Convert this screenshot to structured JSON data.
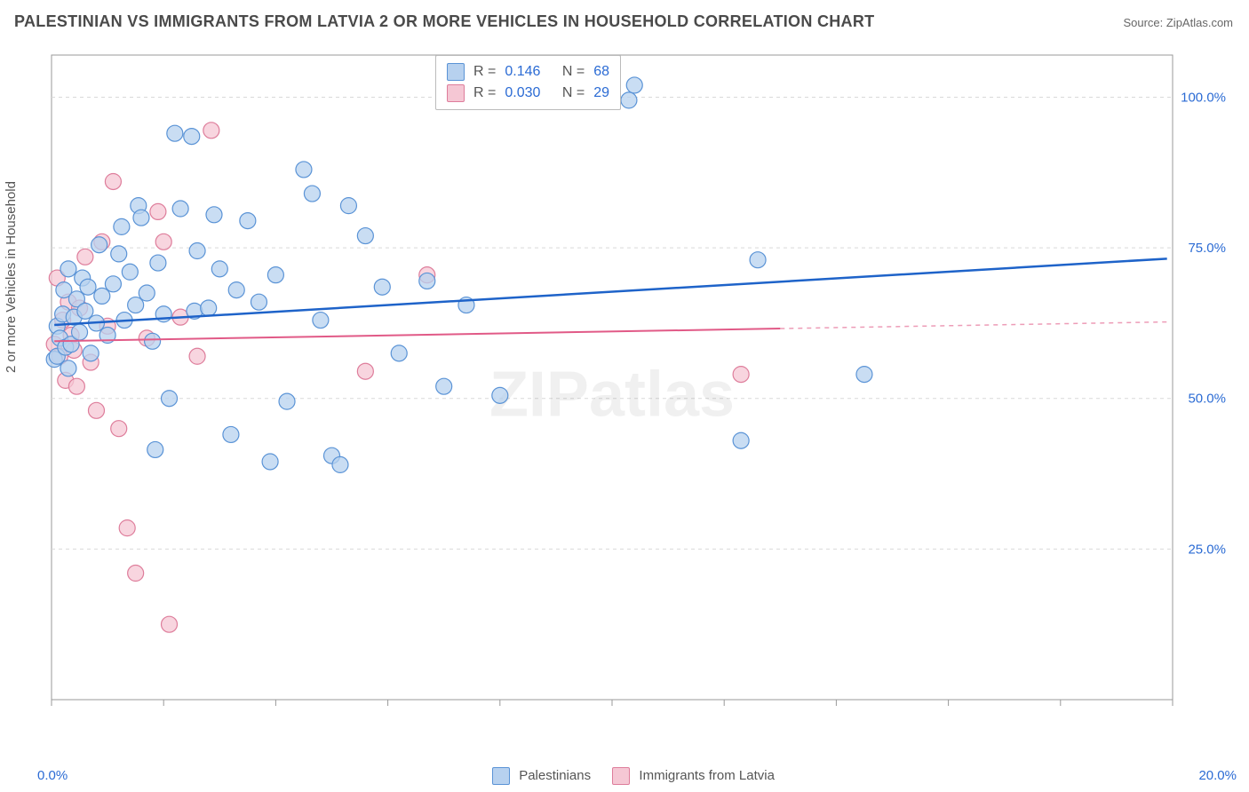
{
  "title": "PALESTINIAN VS IMMIGRANTS FROM LATVIA 2 OR MORE VEHICLES IN HOUSEHOLD CORRELATION CHART",
  "source": "Source: ZipAtlas.com",
  "watermark": "ZIPatlas",
  "ylabel": "2 or more Vehicles in Household",
  "chart": {
    "xlim": [
      0,
      20
    ],
    "ylim": [
      0,
      107
    ],
    "xticks": [
      0,
      2,
      4,
      6,
      8,
      10,
      12,
      14,
      16,
      18,
      20
    ],
    "xtick_labels": {
      "0": "0.0%",
      "20": "20.0%"
    },
    "yticks": [
      25,
      50,
      75,
      100
    ],
    "ytick_labels": {
      "25": "25.0%",
      "50": "50.0%",
      "75": "75.0%",
      "100": "100.0%"
    },
    "grid_color": "#d9d9d9",
    "axis_color": "#999999",
    "background": "#ffffff",
    "series": [
      {
        "name": "Palestinians",
        "fill": "#b7d1ef",
        "stroke": "#5a93d6",
        "line_color": "#1e63c9",
        "r_value": "0.146",
        "n_value": "68",
        "trend": {
          "x1": 0.05,
          "y1": 62.2,
          "x2": 19.9,
          "y2": 73.2
        },
        "points": [
          [
            0.05,
            56.5
          ],
          [
            0.1,
            57.0
          ],
          [
            0.1,
            62.0
          ],
          [
            0.15,
            60.0
          ],
          [
            0.2,
            64.0
          ],
          [
            0.22,
            68.0
          ],
          [
            0.25,
            58.5
          ],
          [
            0.3,
            71.5
          ],
          [
            0.3,
            55.0
          ],
          [
            0.35,
            59.0
          ],
          [
            0.4,
            63.5
          ],
          [
            0.45,
            66.5
          ],
          [
            0.5,
            61.0
          ],
          [
            0.55,
            70.0
          ],
          [
            0.6,
            64.5
          ],
          [
            0.65,
            68.5
          ],
          [
            0.7,
            57.5
          ],
          [
            0.8,
            62.5
          ],
          [
            0.85,
            75.5
          ],
          [
            0.9,
            67.0
          ],
          [
            1.0,
            60.5
          ],
          [
            1.1,
            69.0
          ],
          [
            1.2,
            74.0
          ],
          [
            1.25,
            78.5
          ],
          [
            1.3,
            63.0
          ],
          [
            1.4,
            71.0
          ],
          [
            1.5,
            65.5
          ],
          [
            1.55,
            82.0
          ],
          [
            1.6,
            80.0
          ],
          [
            1.7,
            67.5
          ],
          [
            1.8,
            59.5
          ],
          [
            1.85,
            41.5
          ],
          [
            1.9,
            72.5
          ],
          [
            2.0,
            64.0
          ],
          [
            2.1,
            50.0
          ],
          [
            2.2,
            94.0
          ],
          [
            2.3,
            81.5
          ],
          [
            2.5,
            93.5
          ],
          [
            2.55,
            64.5
          ],
          [
            2.6,
            74.5
          ],
          [
            2.8,
            65.0
          ],
          [
            2.9,
            80.5
          ],
          [
            3.0,
            71.5
          ],
          [
            3.2,
            44.0
          ],
          [
            3.3,
            68.0
          ],
          [
            3.5,
            79.5
          ],
          [
            3.7,
            66.0
          ],
          [
            3.9,
            39.5
          ],
          [
            4.0,
            70.5
          ],
          [
            4.2,
            49.5
          ],
          [
            4.5,
            88.0
          ],
          [
            4.65,
            84.0
          ],
          [
            4.8,
            63.0
          ],
          [
            5.0,
            40.5
          ],
          [
            5.15,
            39.0
          ],
          [
            5.3,
            82.0
          ],
          [
            5.6,
            77.0
          ],
          [
            5.9,
            68.5
          ],
          [
            6.2,
            57.5
          ],
          [
            6.7,
            69.5
          ],
          [
            7.0,
            52.0
          ],
          [
            7.4,
            65.5
          ],
          [
            8.0,
            50.5
          ],
          [
            12.3,
            43.0
          ],
          [
            12.6,
            73.0
          ],
          [
            14.5,
            54.0
          ],
          [
            10.3,
            99.5
          ],
          [
            10.4,
            102.0
          ]
        ]
      },
      {
        "name": "Immigrants from Latvia",
        "fill": "#f5c7d4",
        "stroke": "#de7d9b",
        "line_color": "#e15a87",
        "r_value": "0.030",
        "n_value": "29",
        "trend": {
          "x1": 0.05,
          "y1": 59.5,
          "x2": 13.0,
          "y2": 61.6
        },
        "trend_dash": {
          "x1": 13.0,
          "y1": 61.6,
          "x2": 19.9,
          "y2": 62.7
        },
        "points": [
          [
            0.05,
            59.0
          ],
          [
            0.1,
            70.0
          ],
          [
            0.15,
            57.0
          ],
          [
            0.2,
            63.0
          ],
          [
            0.25,
            53.0
          ],
          [
            0.3,
            66.0
          ],
          [
            0.35,
            60.5
          ],
          [
            0.4,
            58.0
          ],
          [
            0.45,
            52.0
          ],
          [
            0.5,
            65.0
          ],
          [
            0.6,
            73.5
          ],
          [
            0.7,
            56.0
          ],
          [
            0.8,
            48.0
          ],
          [
            0.9,
            76.0
          ],
          [
            1.0,
            62.0
          ],
          [
            1.1,
            86.0
          ],
          [
            1.2,
            45.0
          ],
          [
            1.35,
            28.5
          ],
          [
            1.5,
            21.0
          ],
          [
            1.7,
            60.0
          ],
          [
            1.9,
            81.0
          ],
          [
            2.0,
            76.0
          ],
          [
            2.1,
            12.5
          ],
          [
            2.3,
            63.5
          ],
          [
            2.6,
            57.0
          ],
          [
            2.85,
            94.5
          ],
          [
            5.6,
            54.5
          ],
          [
            6.7,
            70.5
          ],
          [
            12.3,
            54.0
          ]
        ]
      }
    ]
  },
  "legend": {
    "series1": "Palestinians",
    "series2": "Immigrants from Latvia"
  },
  "stats_labels": {
    "R": "R =",
    "N": "N ="
  }
}
